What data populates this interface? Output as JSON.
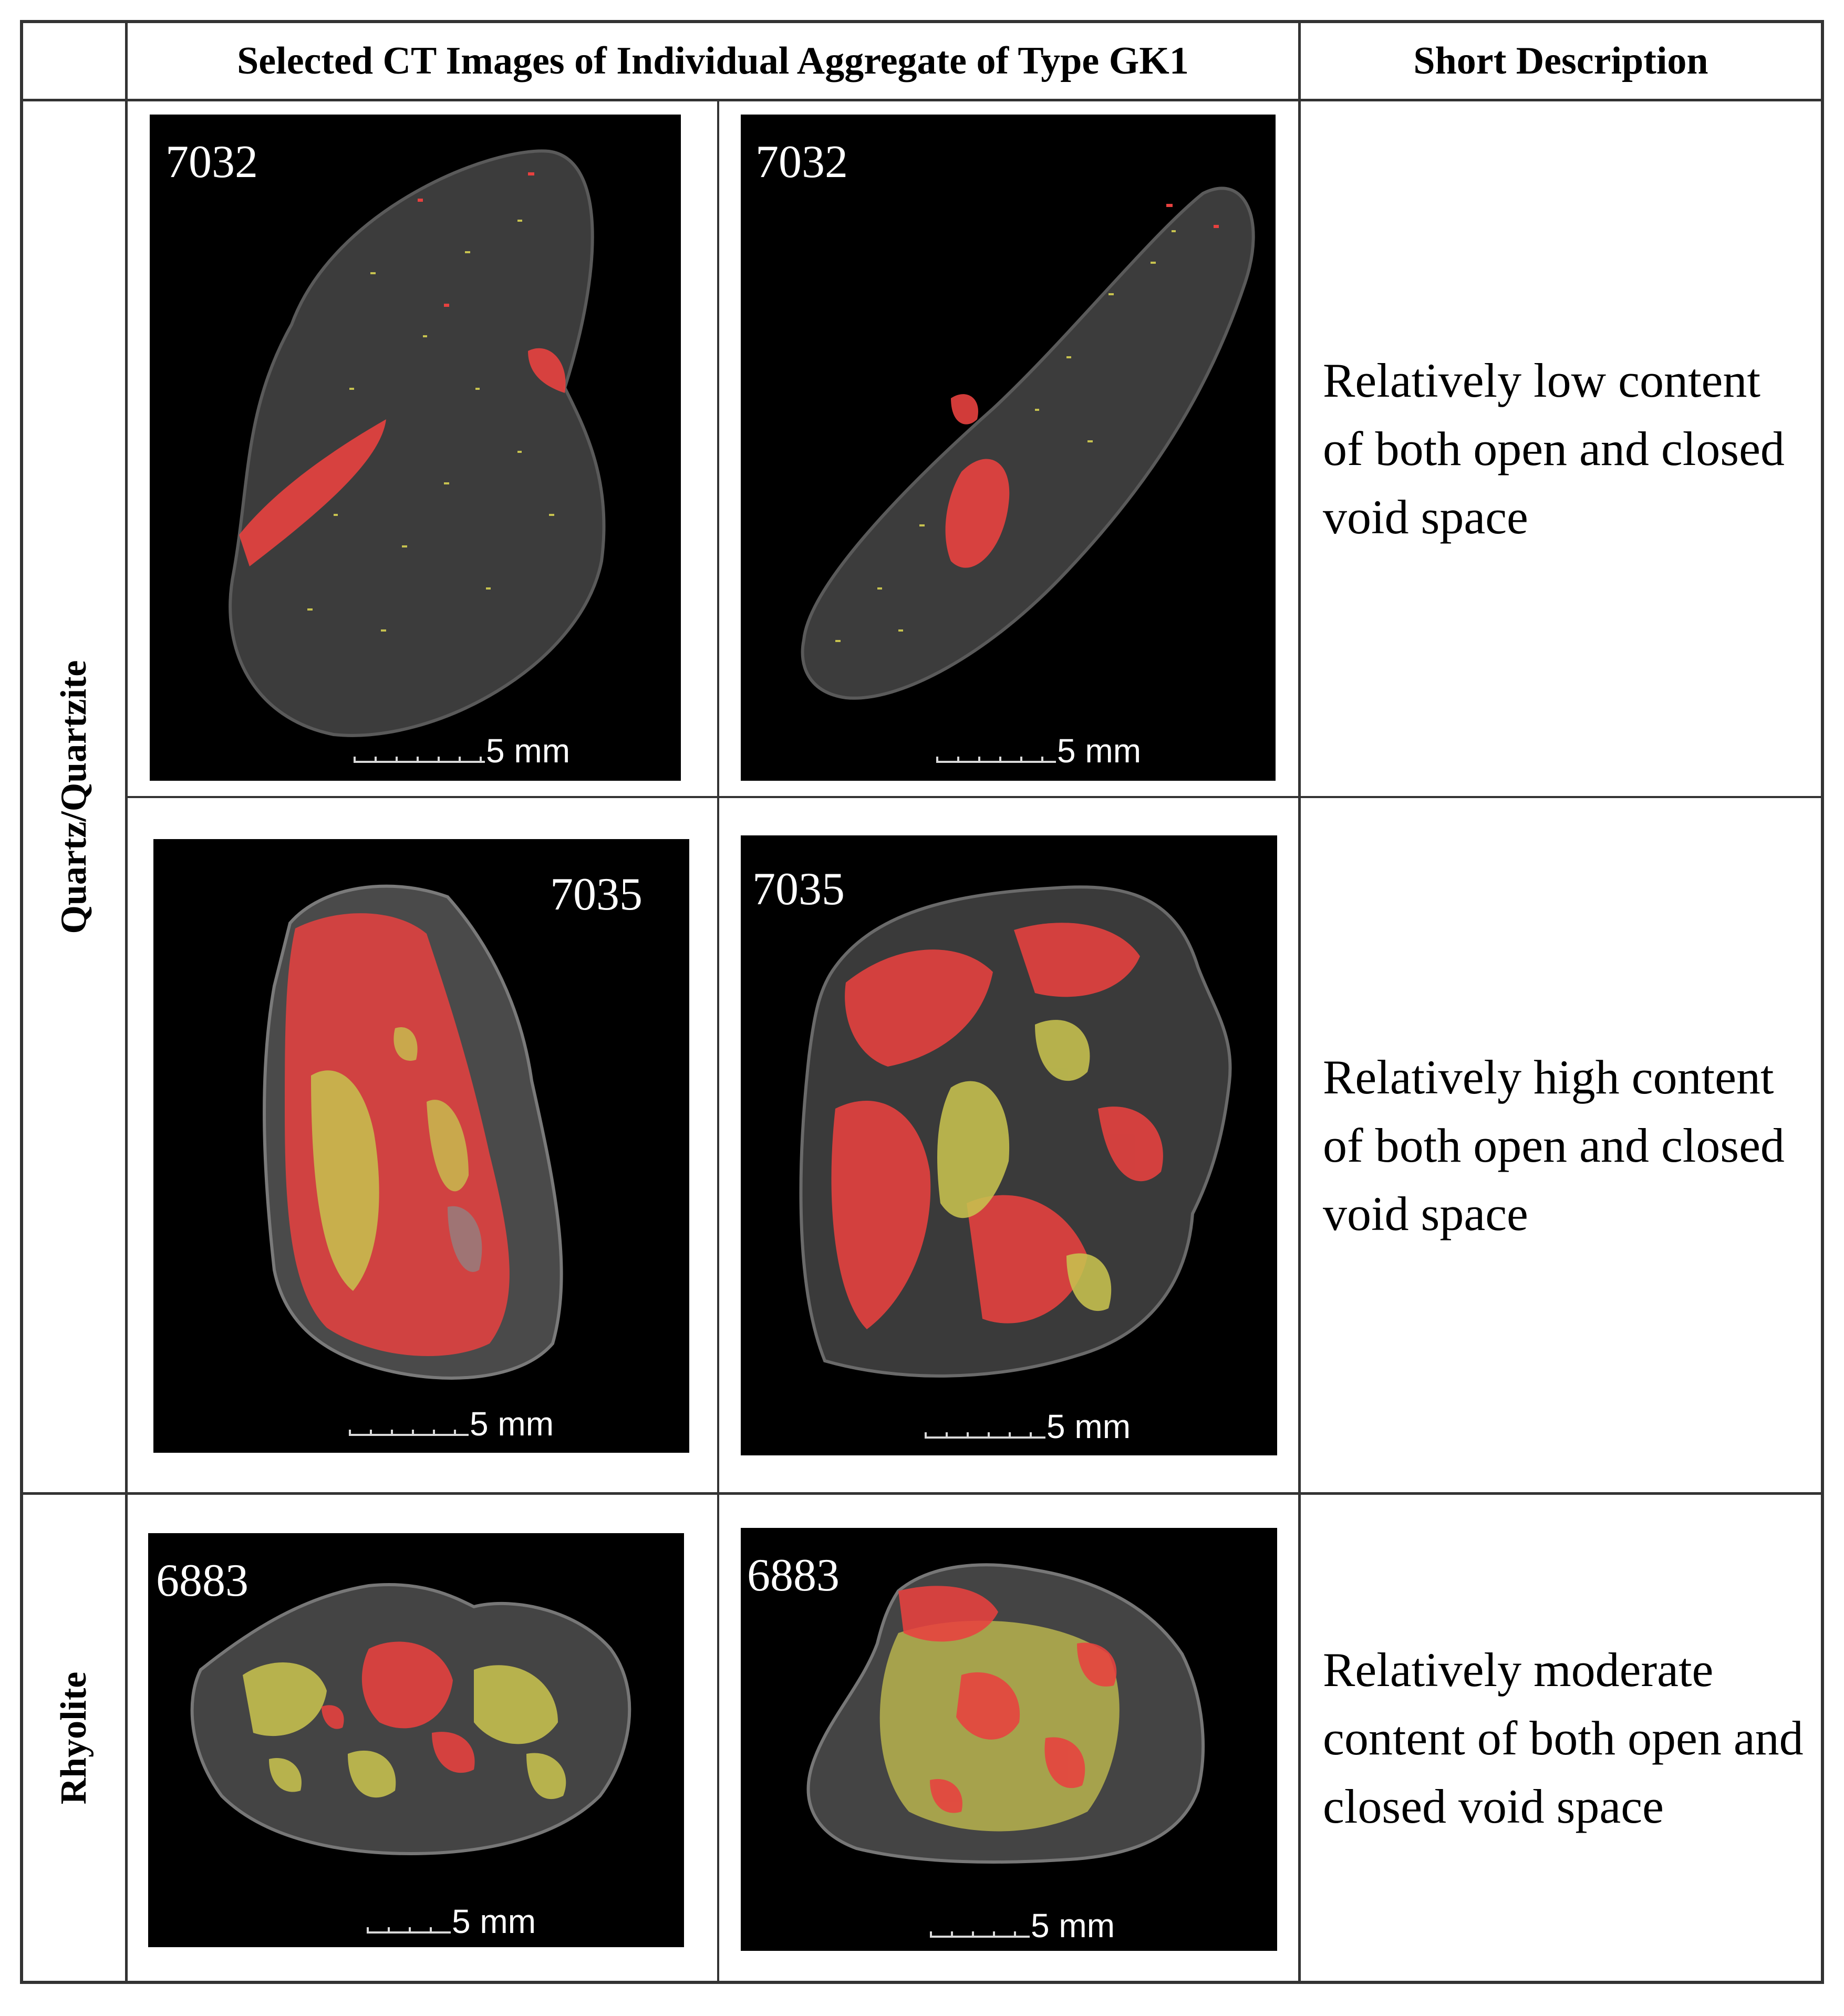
{
  "header": {
    "images_col": "Selected CT Images of Individual Aggregate of Type GK1",
    "desc_col": "Short Description"
  },
  "rows": [
    {
      "rock": "Quartz/Quartzite",
      "samples": [
        {
          "sample_id": "7032",
          "description": "Relatively low content of both open and closed void space",
          "images": [
            {
              "label": "7032",
              "scale": "5 mm"
            },
            {
              "label": "7032",
              "scale": "5 mm"
            }
          ]
        },
        {
          "sample_id": "7035",
          "description": "Relatively high content of both open and closed void space",
          "images": [
            {
              "label": "7035",
              "scale": "5 mm"
            },
            {
              "label": "7035",
              "scale": "5 mm"
            }
          ]
        }
      ]
    },
    {
      "rock": "Rhyolite",
      "samples": [
        {
          "sample_id": "6883",
          "description": "Relatively moderate content of both open and closed void space",
          "images": [
            {
              "label": "6883",
              "scale": "5 mm"
            },
            {
              "label": "6883",
              "scale": "5 mm"
            }
          ]
        }
      ]
    }
  ],
  "colors": {
    "open_void": "#e8413f",
    "closed_void": "#c7c24f",
    "aggregate": "#3c3c3c",
    "background": "#000000"
  }
}
